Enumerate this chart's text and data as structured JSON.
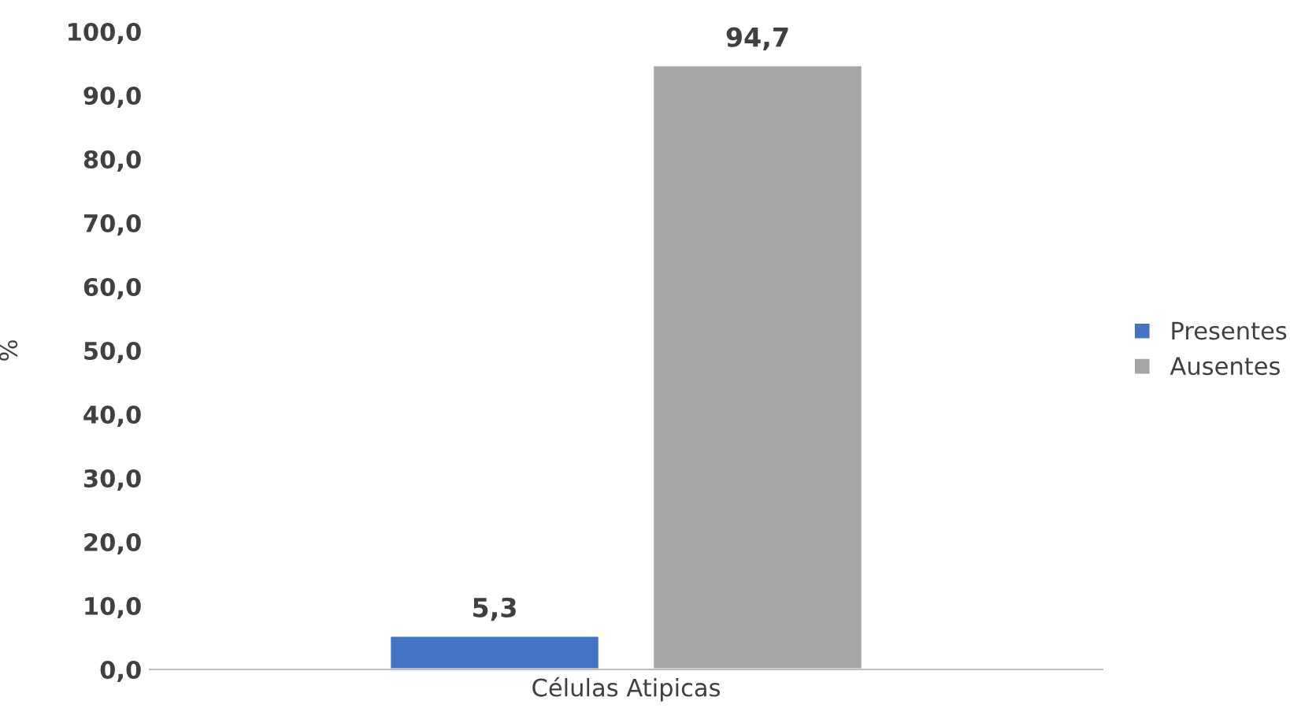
{
  "chart_data": {
    "type": "bar",
    "ylabel": "%",
    "categories": [
      "Células Atipicas"
    ],
    "series": [
      {
        "name": "Presentes",
        "color": "#4472c4",
        "values": [
          5.3
        ],
        "value_labels": [
          "5,3"
        ]
      },
      {
        "name": "Ausentes",
        "color": "#a5a5a5",
        "values": [
          94.7
        ],
        "value_labels": [
          "94,7"
        ]
      }
    ],
    "ylim": [
      0,
      100
    ],
    "yticks": [
      {
        "value": 0,
        "label": "0,0"
      },
      {
        "value": 10,
        "label": "10,0"
      },
      {
        "value": 20,
        "label": "20,0"
      },
      {
        "value": 30,
        "label": "30,0"
      },
      {
        "value": 40,
        "label": "40,0"
      },
      {
        "value": 50,
        "label": "50,0"
      },
      {
        "value": 60,
        "label": "60,0"
      },
      {
        "value": 70,
        "label": "70,0"
      },
      {
        "value": 80,
        "label": "80,0"
      },
      {
        "value": 90,
        "label": "90,0"
      },
      {
        "value": 100,
        "label": "100,0"
      }
    ],
    "grid": false,
    "legend": "right"
  }
}
